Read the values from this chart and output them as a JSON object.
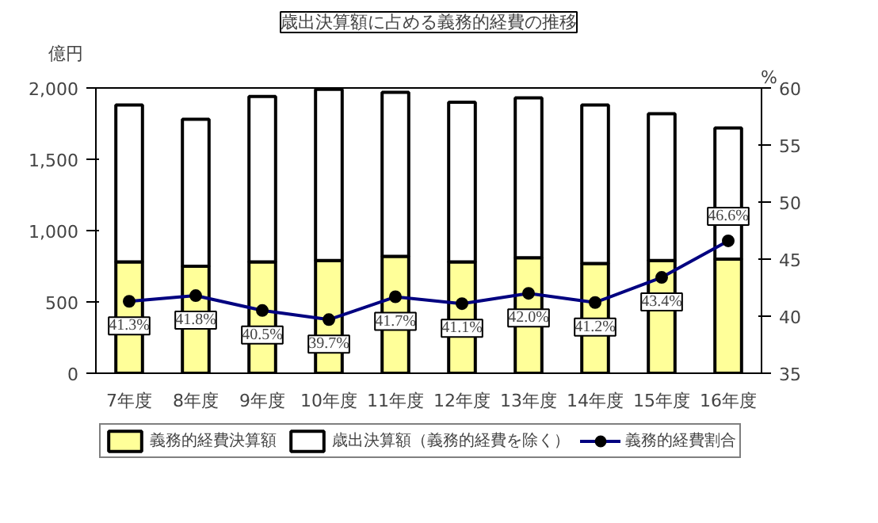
{
  "chart_data": {
    "type": "bar",
    "title": "歳出決算額に占める義務的経費の推移",
    "ylabel": "億円",
    "y2label": "%",
    "categories": [
      "7年度",
      "8年度",
      "9年度",
      "10年度",
      "11年度",
      "12年度",
      "13年度",
      "14年度",
      "15年度",
      "16年度"
    ],
    "stacked": true,
    "series": [
      {
        "name": "義務的経費決算額",
        "color": "#ffff99",
        "values": [
          780,
          750,
          780,
          790,
          820,
          780,
          810,
          770,
          790,
          800
        ]
      },
      {
        "name": "歳出決算額（義務的経費を除く）",
        "color": "#ffffff",
        "values": [
          1100,
          1030,
          1160,
          1200,
          1150,
          1120,
          1120,
          1110,
          1030,
          920
        ]
      },
      {
        "name": "義務的経費割合",
        "type": "line",
        "axis": "y2",
        "color": "#000080",
        "marker": "circle",
        "data_labels": true,
        "values": [
          41.3,
          41.8,
          40.5,
          39.7,
          41.7,
          41.1,
          42.0,
          41.2,
          43.4,
          46.6
        ],
        "value_labels": [
          "41.3%",
          "41.8%",
          "40.5%",
          "39.7%",
          "41.7%",
          "41.1%",
          "42.0%",
          "41.2%",
          "43.4%",
          "46.6%"
        ]
      }
    ],
    "ylim": [
      0,
      2000
    ],
    "yticks": [
      {
        "value": 0,
        "label": "0"
      },
      {
        "value": 500,
        "label": "500"
      },
      {
        "value": 1000,
        "label": "1,000"
      },
      {
        "value": 1500,
        "label": "1,500"
      },
      {
        "value": 2000,
        "label": "2,000"
      }
    ],
    "y2lim": [
      35,
      60
    ],
    "y2ticks": [
      35,
      40,
      45,
      50,
      55,
      60
    ],
    "grid": false,
    "legend": "bottom"
  }
}
